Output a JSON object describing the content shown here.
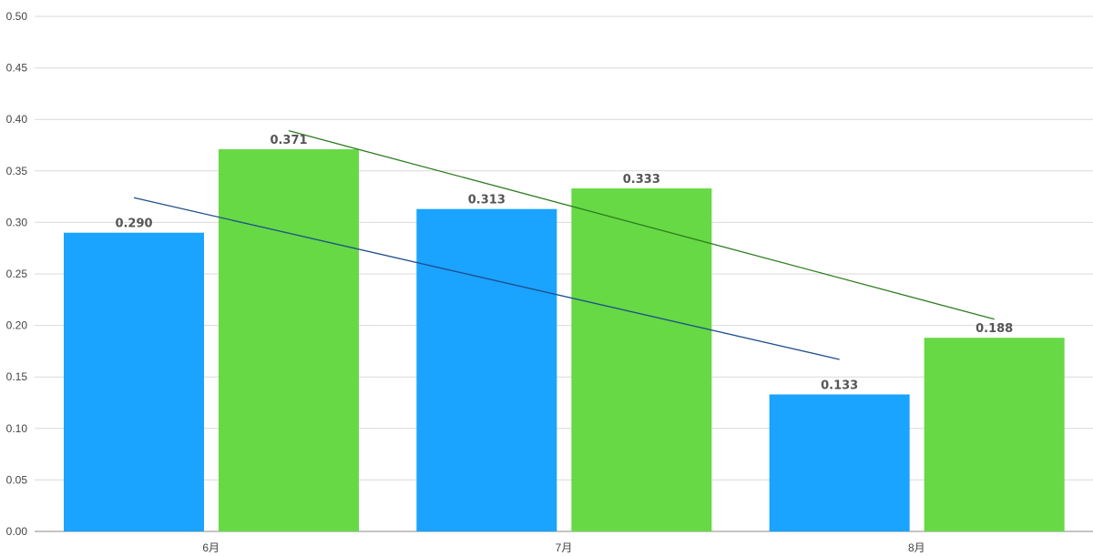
{
  "chart_data": {
    "type": "bar",
    "title": "",
    "xlabel": "",
    "ylabel": "",
    "categories": [
      "6月",
      "7月",
      "8月"
    ],
    "series": [
      {
        "values": [
          0.29,
          0.313,
          0.133
        ],
        "labels": [
          "0.290",
          "0.313",
          "0.133"
        ],
        "color": "#1aa3ff"
      },
      {
        "values": [
          0.371,
          0.333,
          0.188
        ],
        "labels": [
          "0.371",
          "0.333",
          "0.188"
        ],
        "color": "#66d944"
      }
    ],
    "trendlines": [
      {
        "series_index": 0,
        "start": 0.324,
        "end": 0.167,
        "color": "#1f4e8c"
      },
      {
        "series_index": 1,
        "start": 0.389,
        "end": 0.206,
        "color": "#2e7d1f"
      }
    ],
    "ylim": [
      0,
      0.5
    ],
    "y_ticks": [
      "0.00",
      "0.05",
      "0.10",
      "0.15",
      "0.20",
      "0.25",
      "0.30",
      "0.35",
      "0.40",
      "0.45",
      "0.50"
    ],
    "grid": true,
    "legend": "none"
  }
}
